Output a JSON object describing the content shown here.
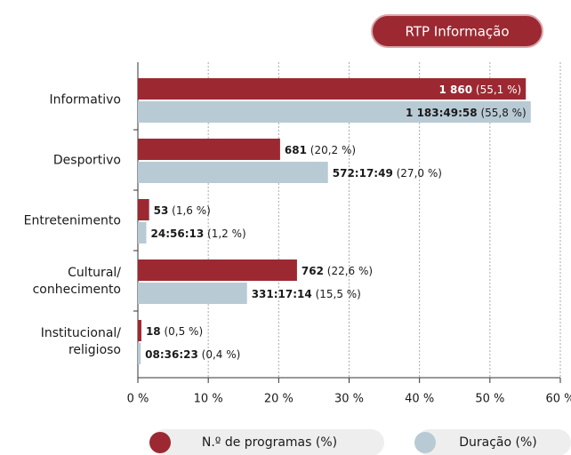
{
  "header": {
    "button": "RTP Informação"
  },
  "chart_data": {
    "type": "barh",
    "categories": [
      "Informativo",
      "Desportivo",
      "Entretenimento",
      "Cultural/\nconhecimento",
      "Institucional/\nreligioso"
    ],
    "series": [
      {
        "name": "N.º de programas (%)",
        "color": "#9c2932",
        "values": [
          55.1,
          20.2,
          1.6,
          22.6,
          0.5
        ],
        "value_labels": [
          "1 860 (55,1 %)",
          "681 (20,2 %)",
          "53 (1,6 %)",
          "762 (22,6 %)",
          "18 (0,5 %)"
        ]
      },
      {
        "name": "Duração (%)",
        "color": "#b8cad4",
        "values": [
          55.8,
          27.0,
          1.2,
          15.5,
          0.4
        ],
        "value_labels": [
          "1 183:49:58 (55,8 %)",
          "572:17:49 (27,0 %)",
          "24:56:13 (1,2 %)",
          "331:17:14 (15,5 %)",
          "08:36:23 (0,4 %)"
        ]
      }
    ],
    "xlim": [
      0,
      60
    ],
    "xticks": [
      {
        "value": 0,
        "label": "0 %"
      },
      {
        "value": 10,
        "label": "10 %"
      },
      {
        "value": 20,
        "label": "20 %"
      },
      {
        "value": 30,
        "label": "30 %"
      },
      {
        "value": 40,
        "label": "40 %"
      },
      {
        "value": 50,
        "label": "50 %"
      },
      {
        "value": 60,
        "label": "60 %"
      }
    ],
    "grid": true,
    "legend": "bottom"
  }
}
